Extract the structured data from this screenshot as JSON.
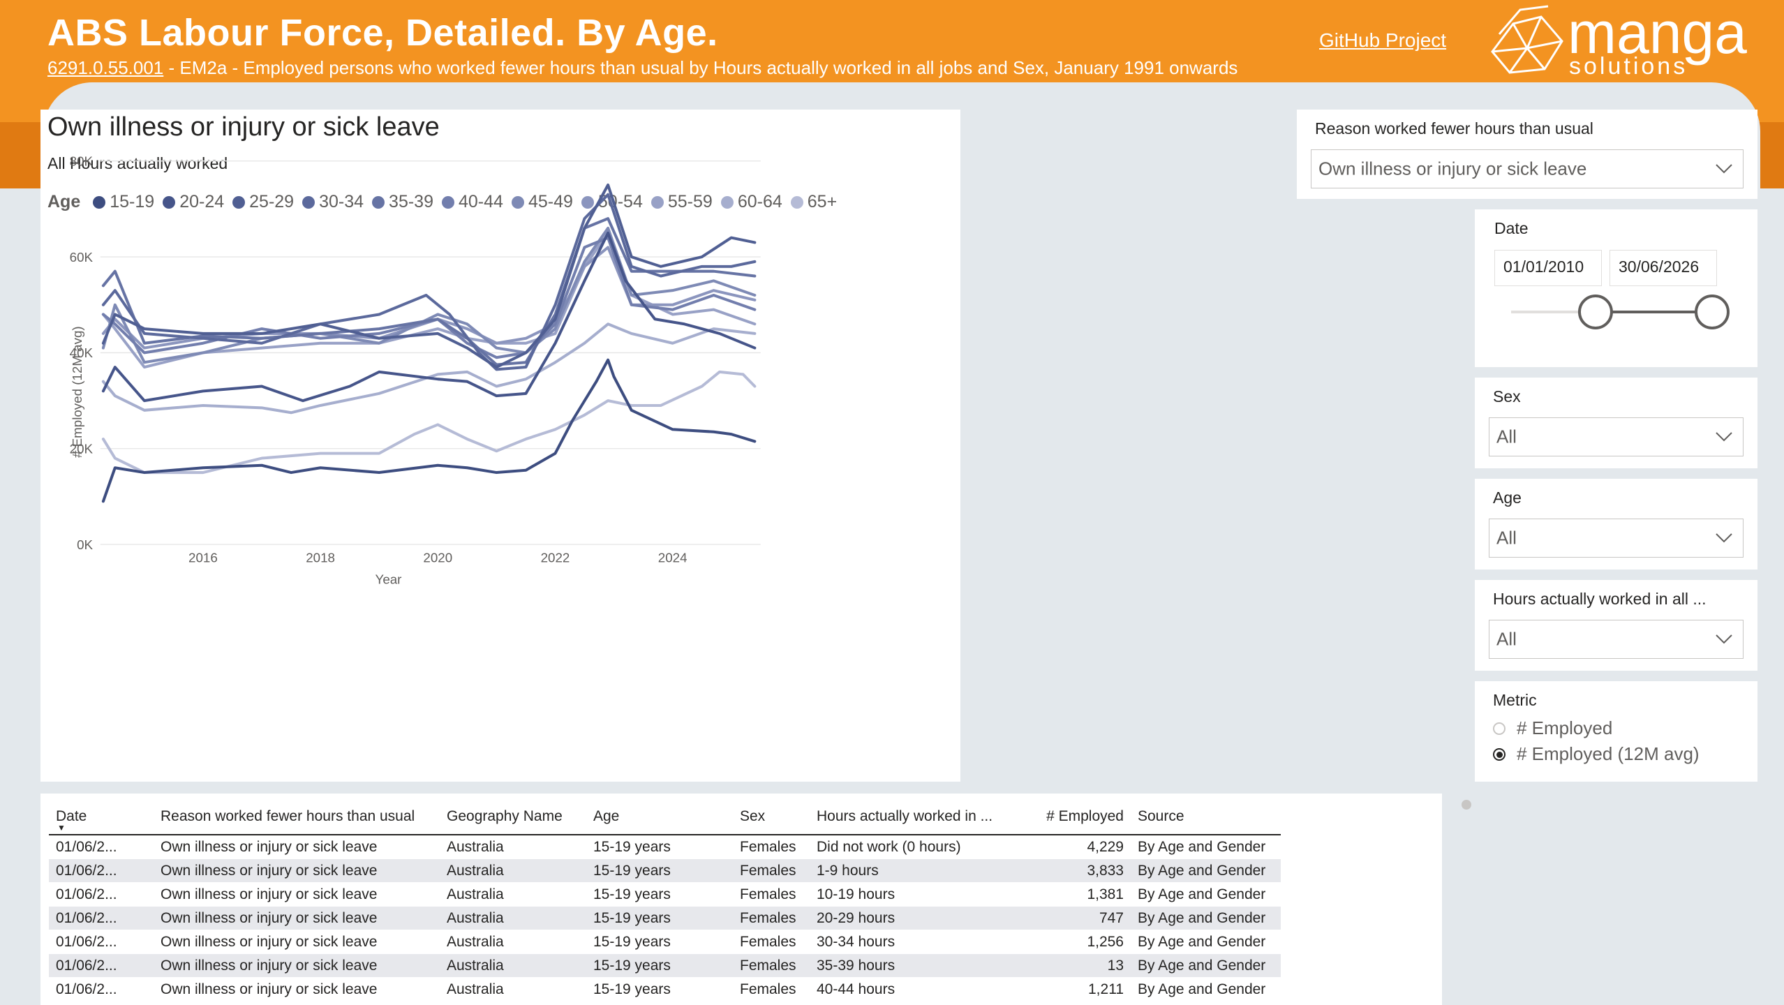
{
  "header": {
    "title": "ABS Labour Force, Detailed. By Age.",
    "subtitle_code": "6291.0.55.001",
    "subtitle_rest": " - EM2a - Employed persons who worked fewer hours than usual by Hours actually worked in all jobs and Sex, January 1991 onwards",
    "github_label": "GitHub Project",
    "logo_word": "manga",
    "logo_sub": "solutions"
  },
  "chart": {
    "title": "Own illness or injury or sick leave",
    "subtitle": "All Hours actually worked",
    "legend_title": "Age",
    "legend": [
      "15-19",
      "20-24",
      "25-29",
      "30-34",
      "35-39",
      "40-44",
      "45-49",
      "50-54",
      "55-59",
      "60-64",
      "65+"
    ],
    "colors": [
      "#3d4d80",
      "#46558a",
      "#505f93",
      "#5b699c",
      "#6673a4",
      "#727ead",
      "#7e8ab5",
      "#8b95be",
      "#98a1c6",
      "#a6aece",
      "#b5bbd6"
    ]
  },
  "chart_data": {
    "type": "line",
    "title": "Own illness or injury or sick leave",
    "subtitle": "All Hours actually worked",
    "xlabel": "Year",
    "ylabel": "# Employed (12M avg)",
    "x_ticks": [
      "2016",
      "2018",
      "2020",
      "2022",
      "2024"
    ],
    "y_ticks": [
      "0K",
      "20K",
      "40K",
      "60K",
      "80K"
    ],
    "xlim": [
      2014.25,
      2025.5
    ],
    "ylim": [
      0,
      80000
    ],
    "series": [
      {
        "name": "15-19",
        "points": [
          [
            2014.3,
            9000
          ],
          [
            2014.5,
            16000
          ],
          [
            2015,
            15000
          ],
          [
            2016,
            16000
          ],
          [
            2017,
            16500
          ],
          [
            2017.5,
            15000
          ],
          [
            2018,
            16000
          ],
          [
            2019,
            15000
          ],
          [
            2020,
            16500
          ],
          [
            2020.5,
            16000
          ],
          [
            2021,
            15000
          ],
          [
            2021.5,
            15500
          ],
          [
            2022,
            19000
          ],
          [
            2022.3,
            26000
          ],
          [
            2022.7,
            34000
          ],
          [
            2022.9,
            38500
          ],
          [
            2023,
            35000
          ],
          [
            2023.3,
            28000
          ],
          [
            2024,
            24000
          ],
          [
            2024.7,
            23500
          ],
          [
            2025,
            23000
          ],
          [
            2025.4,
            21500
          ]
        ]
      },
      {
        "name": "20-24",
        "points": [
          [
            2014.3,
            32000
          ],
          [
            2014.5,
            37000
          ],
          [
            2015,
            30000
          ],
          [
            2016,
            32000
          ],
          [
            2017,
            33000
          ],
          [
            2017.7,
            30000
          ],
          [
            2018.5,
            33000
          ],
          [
            2019,
            36000
          ],
          [
            2020,
            34500
          ],
          [
            2020.5,
            34000
          ],
          [
            2021,
            31000
          ],
          [
            2021.5,
            31500
          ],
          [
            2022,
            42000
          ],
          [
            2022.5,
            55000
          ],
          [
            2022.9,
            65000
          ],
          [
            2023.2,
            55000
          ],
          [
            2023.7,
            47000
          ],
          [
            2024.2,
            46000
          ],
          [
            2024.8,
            44000
          ],
          [
            2025.4,
            41000
          ]
        ]
      },
      {
        "name": "25-29",
        "points": [
          [
            2014.3,
            42000
          ],
          [
            2014.5,
            48000
          ],
          [
            2015,
            45000
          ],
          [
            2016,
            44000
          ],
          [
            2017,
            44000
          ],
          [
            2018,
            46000
          ],
          [
            2019,
            43000
          ],
          [
            2020,
            44000
          ],
          [
            2020.5,
            41000
          ],
          [
            2021,
            37000
          ],
          [
            2021.5,
            40000
          ],
          [
            2022,
            47000
          ],
          [
            2022.5,
            66000
          ],
          [
            2022.9,
            75000
          ],
          [
            2023.3,
            60000
          ],
          [
            2023.8,
            58000
          ],
          [
            2024.5,
            60000
          ],
          [
            2025,
            64000
          ],
          [
            2025.4,
            63000
          ]
        ]
      },
      {
        "name": "30-34",
        "points": [
          [
            2014.3,
            50000
          ],
          [
            2014.5,
            53000
          ],
          [
            2015,
            44000
          ],
          [
            2016,
            43000
          ],
          [
            2017,
            42000
          ],
          [
            2018,
            46000
          ],
          [
            2019,
            48000
          ],
          [
            2019.8,
            52000
          ],
          [
            2020.2,
            48000
          ],
          [
            2020.7,
            40000
          ],
          [
            2021,
            36500
          ],
          [
            2021.5,
            37000
          ],
          [
            2022,
            50000
          ],
          [
            2022.5,
            68000
          ],
          [
            2022.9,
            73000
          ],
          [
            2023.3,
            58000
          ],
          [
            2023.8,
            56000
          ],
          [
            2024.5,
            58000
          ],
          [
            2025,
            58000
          ],
          [
            2025.4,
            59000
          ]
        ]
      },
      {
        "name": "35-39",
        "points": [
          [
            2014.3,
            54000
          ],
          [
            2014.5,
            57000
          ],
          [
            2015,
            42000
          ],
          [
            2016,
            43500
          ],
          [
            2017,
            43000
          ],
          [
            2018,
            44000
          ],
          [
            2019,
            45000
          ],
          [
            2020,
            47000
          ],
          [
            2020.5,
            43000
          ],
          [
            2021,
            37500
          ],
          [
            2021.5,
            38000
          ],
          [
            2022,
            48000
          ],
          [
            2022.5,
            66000
          ],
          [
            2022.9,
            68000
          ],
          [
            2023.3,
            57000
          ],
          [
            2024,
            57000
          ],
          [
            2024.7,
            57000
          ],
          [
            2025.4,
            56000
          ]
        ]
      },
      {
        "name": "40-44",
        "points": [
          [
            2014.3,
            48000
          ],
          [
            2014.5,
            46000
          ],
          [
            2015,
            40000
          ],
          [
            2016,
            42000
          ],
          [
            2017,
            45000
          ],
          [
            2018,
            43000
          ],
          [
            2019,
            44000
          ],
          [
            2020,
            47000
          ],
          [
            2020.5,
            42000
          ],
          [
            2021,
            39000
          ],
          [
            2021.5,
            40000
          ],
          [
            2022,
            46000
          ],
          [
            2022.5,
            62000
          ],
          [
            2022.9,
            64000
          ],
          [
            2023.3,
            50000
          ],
          [
            2024,
            49000
          ],
          [
            2024.7,
            52000
          ],
          [
            2025.4,
            49000
          ]
        ]
      },
      {
        "name": "45-49",
        "points": [
          [
            2014.3,
            41000
          ],
          [
            2014.5,
            50000
          ],
          [
            2015,
            38000
          ],
          [
            2016,
            40000
          ],
          [
            2017,
            43000
          ],
          [
            2018,
            44000
          ],
          [
            2019,
            42000
          ],
          [
            2020,
            48000
          ],
          [
            2020.5,
            46000
          ],
          [
            2021,
            41000
          ],
          [
            2021.5,
            40000
          ],
          [
            2022,
            45000
          ],
          [
            2022.5,
            59000
          ],
          [
            2022.9,
            66000
          ],
          [
            2023.3,
            52000
          ],
          [
            2024,
            53000
          ],
          [
            2024.7,
            55000
          ],
          [
            2025.4,
            52000
          ]
        ]
      },
      {
        "name": "50-54",
        "points": [
          [
            2014.3,
            44000
          ],
          [
            2014.5,
            47000
          ],
          [
            2015,
            41000
          ],
          [
            2016,
            43000
          ],
          [
            2017,
            44000
          ],
          [
            2018,
            44000
          ],
          [
            2019,
            43000
          ],
          [
            2020,
            47000
          ],
          [
            2020.5,
            45000
          ],
          [
            2021,
            42000
          ],
          [
            2021.5,
            43000
          ],
          [
            2022,
            46000
          ],
          [
            2022.5,
            58000
          ],
          [
            2022.9,
            62000
          ],
          [
            2023.3,
            50000
          ],
          [
            2024,
            50000
          ],
          [
            2024.7,
            53000
          ],
          [
            2025.4,
            51000
          ]
        ]
      },
      {
        "name": "55-59",
        "points": [
          [
            2014.3,
            48000
          ],
          [
            2014.5,
            45000
          ],
          [
            2015,
            37000
          ],
          [
            2016,
            40000
          ],
          [
            2017,
            41000
          ],
          [
            2018,
            42000
          ],
          [
            2019,
            42000
          ],
          [
            2020,
            45000
          ],
          [
            2020.5,
            43000
          ],
          [
            2021,
            42000
          ],
          [
            2021.5,
            42000
          ],
          [
            2022,
            44000
          ],
          [
            2022.5,
            58000
          ],
          [
            2022.9,
            65000
          ],
          [
            2023.3,
            52000
          ],
          [
            2024,
            48000
          ],
          [
            2024.7,
            49000
          ],
          [
            2025.4,
            46000
          ]
        ]
      },
      {
        "name": "60-64",
        "points": [
          [
            2014.3,
            34000
          ],
          [
            2014.5,
            31000
          ],
          [
            2015,
            28000
          ],
          [
            2016,
            29000
          ],
          [
            2017,
            28500
          ],
          [
            2017.5,
            27500
          ],
          [
            2018,
            29000
          ],
          [
            2019,
            31500
          ],
          [
            2020,
            35500
          ],
          [
            2020.5,
            36000
          ],
          [
            2021,
            33000
          ],
          [
            2021.5,
            34500
          ],
          [
            2022,
            38000
          ],
          [
            2022.5,
            42000
          ],
          [
            2022.9,
            46000
          ],
          [
            2023.3,
            44000
          ],
          [
            2024,
            42000
          ],
          [
            2024.7,
            45000
          ],
          [
            2025.4,
            44000
          ]
        ]
      },
      {
        "name": "65+",
        "points": [
          [
            2014.3,
            22000
          ],
          [
            2014.5,
            18000
          ],
          [
            2015,
            15000
          ],
          [
            2016,
            15000
          ],
          [
            2017,
            18000
          ],
          [
            2018,
            19000
          ],
          [
            2019,
            19000
          ],
          [
            2019.6,
            23000
          ],
          [
            2020,
            25000
          ],
          [
            2020.5,
            22000
          ],
          [
            2021,
            19500
          ],
          [
            2021.5,
            22000
          ],
          [
            2022,
            24000
          ],
          [
            2022.5,
            27000
          ],
          [
            2022.9,
            30000
          ],
          [
            2023.3,
            29000
          ],
          [
            2023.8,
            29000
          ],
          [
            2024.5,
            33000
          ],
          [
            2024.8,
            36000
          ],
          [
            2025.2,
            35500
          ],
          [
            2025.4,
            33000
          ]
        ]
      }
    ]
  },
  "slicers": {
    "reason": {
      "label": "Reason worked fewer hours than usual",
      "value": "Own illness or injury or sick leave"
    },
    "date": {
      "label": "Date",
      "start": "01/01/2010",
      "end": "30/06/2026",
      "slider_fraction_start": 0.42,
      "slider_fraction_end": 1.0
    },
    "sex": {
      "label": "Sex",
      "value": "All"
    },
    "age": {
      "label": "Age",
      "value": "All"
    },
    "hours": {
      "label": "Hours actually worked in all ...",
      "value": "All"
    },
    "metric": {
      "label": "Metric",
      "options": [
        "# Employed",
        "# Employed (12M avg)"
      ],
      "selected": "# Employed (12M avg)"
    }
  },
  "table": {
    "columns": [
      "Date",
      "Reason worked fewer hours than usual",
      "Geography Name",
      "Age",
      "Sex",
      "Hours actually worked in ...",
      "# Employed",
      "Source"
    ],
    "rows": [
      [
        "01/06/2...",
        "Own illness or injury or sick leave",
        "Australia",
        "15-19 years",
        "Females",
        "Did not work (0 hours)",
        "4,229",
        "By Age and Gender"
      ],
      [
        "01/06/2...",
        "Own illness or injury or sick leave",
        "Australia",
        "15-19 years",
        "Females",
        "1-9 hours",
        "3,833",
        "By Age and Gender"
      ],
      [
        "01/06/2...",
        "Own illness or injury or sick leave",
        "Australia",
        "15-19 years",
        "Females",
        "10-19 hours",
        "1,381",
        "By Age and Gender"
      ],
      [
        "01/06/2...",
        "Own illness or injury or sick leave",
        "Australia",
        "15-19 years",
        "Females",
        "20-29 hours",
        "747",
        "By Age and Gender"
      ],
      [
        "01/06/2...",
        "Own illness or injury or sick leave",
        "Australia",
        "15-19 years",
        "Females",
        "30-34 hours",
        "1,256",
        "By Age and Gender"
      ],
      [
        "01/06/2...",
        "Own illness or injury or sick leave",
        "Australia",
        "15-19 years",
        "Females",
        "35-39 hours",
        "13",
        "By Age and Gender"
      ],
      [
        "01/06/2...",
        "Own illness or injury or sick leave",
        "Australia",
        "15-19 years",
        "Females",
        "40-44 hours",
        "1,211",
        "By Age and Gender"
      ]
    ]
  }
}
